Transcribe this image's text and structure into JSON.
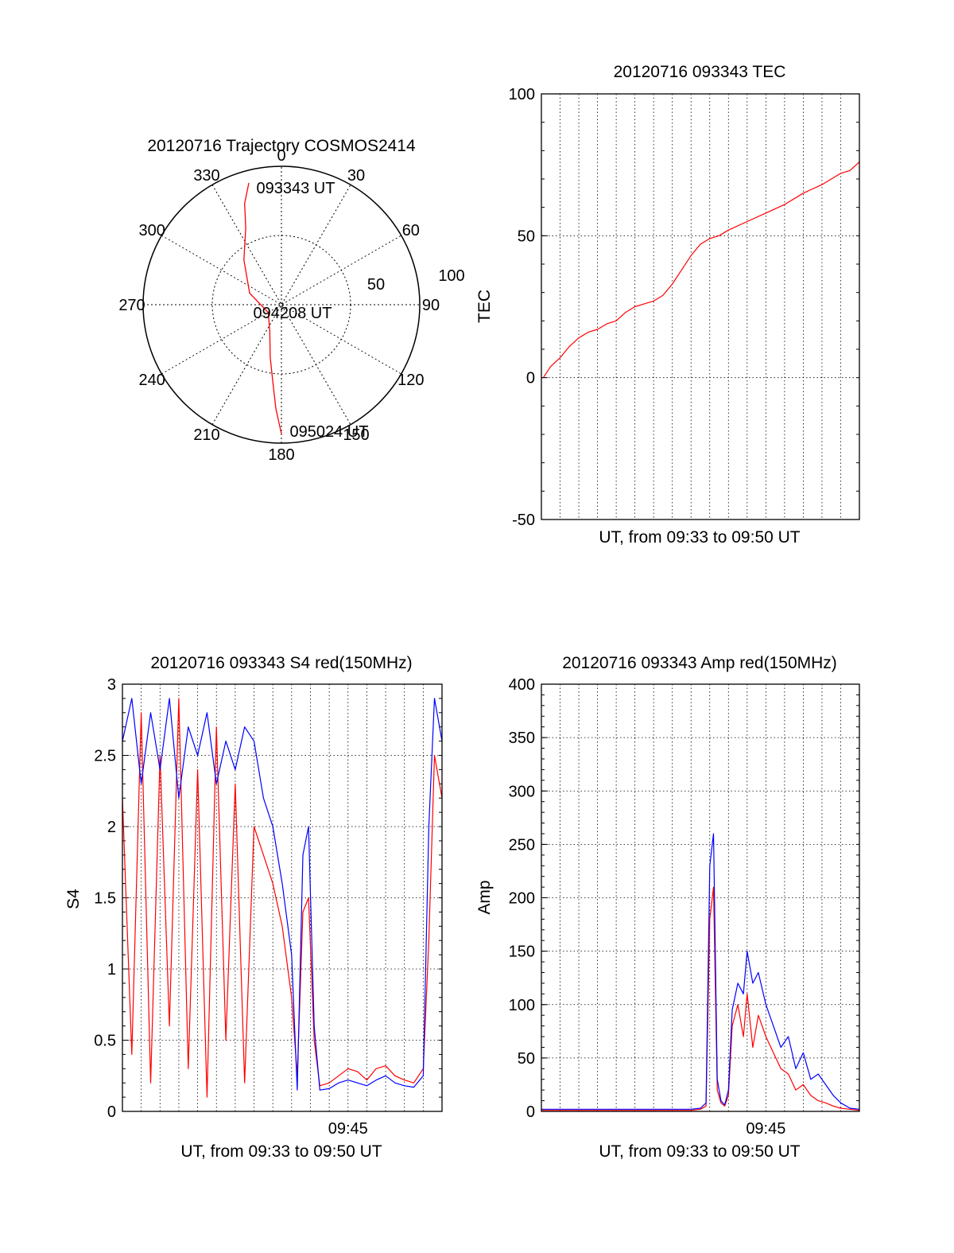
{
  "colors": {
    "red_channel": "#ff0000",
    "blue_channel": "#0000ff",
    "axis": "#000000"
  },
  "chart_data": [
    {
      "id": "polar",
      "type": "polar",
      "title": "20120716 Trajectory COSMOS2414",
      "azimuth_labels": [
        "0",
        "30",
        "60",
        "90",
        "120",
        "150",
        "180",
        "210",
        "240",
        "270",
        "300",
        "330"
      ],
      "radial_labels": [
        "50",
        "100"
      ],
      "grid": true,
      "time_labels": {
        "start": "093343 UT",
        "middle": "094208 UT",
        "end": "095024 UT"
      },
      "track": {
        "name": "",
        "points": [
          {
            "az": 345,
            "el": 8
          },
          {
            "az": 340,
            "el": 20
          },
          {
            "az": 335,
            "el": 35
          },
          {
            "az": 320,
            "el": 52
          },
          {
            "az": 290,
            "el": 68
          },
          {
            "az": 240,
            "el": 80
          },
          {
            "az": 205,
            "el": 72
          },
          {
            "az": 192,
            "el": 55
          },
          {
            "az": 186,
            "el": 38
          },
          {
            "az": 183,
            "el": 22
          },
          {
            "az": 180,
            "el": 6
          }
        ]
      }
    },
    {
      "id": "tec",
      "type": "line",
      "title": "20120716 093343 TEC",
      "xlabel": "UT, from 09:33 to 09:50 UT",
      "ylabel": "TEC",
      "ylim": [
        -50,
        100
      ],
      "yticks": [
        "-50",
        "0",
        "50",
        "100"
      ],
      "xlim_minutes": [
        0,
        17
      ],
      "grid": true,
      "series": [
        {
          "name": "",
          "x_minutes": [
            0.1,
            0.5,
            1.0,
            1.5,
            2.0,
            2.5,
            3.0,
            3.5,
            4.0,
            4.5,
            5.0,
            5.5,
            6.0,
            6.5,
            7.0,
            7.5,
            8.0,
            8.5,
            9.0,
            9.5,
            10.0,
            11.0,
            12.0,
            13.0,
            14.0,
            15.0,
            16.0,
            16.5,
            17.0
          ],
          "values": [
            0,
            4,
            7,
            11,
            14,
            16,
            17,
            19,
            20,
            23,
            25,
            26,
            27,
            29,
            33,
            38,
            43,
            47,
            49,
            50,
            52,
            55,
            58,
            61,
            65,
            68,
            72,
            73,
            76
          ]
        }
      ]
    },
    {
      "id": "s4",
      "type": "line",
      "title": "20120716 093343 S4 red(150MHz)",
      "xlabel": "UT, from 09:33 to 09:50 UT",
      "ylabel": "S4",
      "ylim": [
        0,
        3
      ],
      "yticks": [
        "0",
        "0.5",
        "1",
        "1.5",
        "2",
        "2.5",
        "3"
      ],
      "xtick_label": "09:45",
      "xtick_minute": 12,
      "xlim_minutes": [
        0,
        17
      ],
      "grid": true,
      "series": [
        {
          "name": "",
          "color_key": "red_channel",
          "x_minutes": [
            0,
            0.5,
            1,
            1.5,
            2,
            2.5,
            3,
            3.5,
            4,
            4.5,
            5,
            5.5,
            6,
            6.5,
            7,
            7.5,
            8,
            8.5,
            9,
            9.3,
            9.6,
            9.9,
            10.2,
            10.5,
            11,
            11.5,
            12,
            12.5,
            13,
            13.5,
            14,
            14.5,
            15,
            15.5,
            16,
            16.3,
            16.6,
            17
          ],
          "values": [
            2.2,
            0.4,
            2.8,
            0.2,
            2.5,
            0.6,
            2.9,
            0.3,
            2.4,
            0.1,
            2.7,
            0.5,
            2.3,
            0.2,
            2.0,
            1.8,
            1.6,
            1.3,
            0.8,
            0.25,
            1.4,
            1.5,
            0.5,
            0.18,
            0.2,
            0.25,
            0.3,
            0.28,
            0.22,
            0.3,
            0.32,
            0.25,
            0.22,
            0.2,
            0.3,
            1.2,
            2.5,
            2.2
          ]
        },
        {
          "name": "",
          "color_key": "blue_channel",
          "x_minutes": [
            0,
            0.5,
            1,
            1.5,
            2,
            2.5,
            3,
            3.5,
            4,
            4.5,
            5,
            5.5,
            6,
            6.5,
            7,
            7.5,
            8,
            8.5,
            9,
            9.3,
            9.6,
            9.9,
            10.2,
            10.5,
            11,
            11.5,
            12,
            12.5,
            13,
            13.5,
            14,
            14.5,
            15,
            15.5,
            16,
            16.3,
            16.6,
            17
          ],
          "values": [
            2.6,
            2.9,
            2.3,
            2.8,
            2.4,
            2.9,
            2.2,
            2.7,
            2.5,
            2.8,
            2.3,
            2.6,
            2.4,
            2.7,
            2.6,
            2.2,
            2.0,
            1.6,
            1.1,
            0.15,
            1.8,
            2.0,
            0.6,
            0.15,
            0.16,
            0.2,
            0.22,
            0.2,
            0.18,
            0.22,
            0.25,
            0.2,
            0.18,
            0.17,
            0.25,
            2.0,
            2.9,
            2.6
          ]
        }
      ]
    },
    {
      "id": "amp",
      "type": "line",
      "title": "20120716 093343 Amp red(150MHz)",
      "xlabel": "UT, from 09:33 to 09:50 UT",
      "ylabel": "Amp",
      "ylim": [
        0,
        400
      ],
      "yticks": [
        "0",
        "50",
        "100",
        "150",
        "200",
        "250",
        "300",
        "350",
        "400"
      ],
      "xtick_label": "09:45",
      "xtick_minute": 12,
      "xlim_minutes": [
        0,
        17
      ],
      "grid": true,
      "series": [
        {
          "name": "",
          "color_key": "red_channel",
          "x_minutes": [
            0,
            2,
            4,
            6,
            8,
            8.5,
            8.8,
            9.0,
            9.2,
            9.4,
            9.6,
            9.8,
            10.0,
            10.2,
            10.5,
            10.8,
            11.0,
            11.3,
            11.6,
            12.0,
            12.4,
            12.8,
            13.2,
            13.6,
            14.0,
            14.4,
            14.8,
            15.2,
            15.6,
            16.0,
            16.5,
            17
          ],
          "values": [
            1,
            1,
            1,
            1,
            1,
            2,
            5,
            180,
            210,
            20,
            8,
            5,
            15,
            80,
            100,
            70,
            110,
            60,
            90,
            70,
            55,
            40,
            35,
            20,
            25,
            15,
            10,
            8,
            5,
            3,
            2,
            1
          ]
        },
        {
          "name": "",
          "color_key": "blue_channel",
          "x_minutes": [
            0,
            2,
            4,
            6,
            8,
            8.5,
            8.8,
            9.0,
            9.2,
            9.4,
            9.6,
            9.8,
            10.0,
            10.2,
            10.5,
            10.8,
            11.0,
            11.3,
            11.6,
            12.0,
            12.4,
            12.8,
            13.2,
            13.6,
            14.0,
            14.4,
            14.8,
            15.2,
            15.6,
            16.0,
            16.5,
            17
          ],
          "values": [
            2,
            2,
            2,
            2,
            2,
            3,
            8,
            230,
            260,
            30,
            10,
            6,
            20,
            95,
            120,
            110,
            150,
            120,
            130,
            100,
            80,
            60,
            70,
            40,
            55,
            30,
            35,
            25,
            15,
            8,
            3,
            2
          ]
        }
      ]
    }
  ]
}
